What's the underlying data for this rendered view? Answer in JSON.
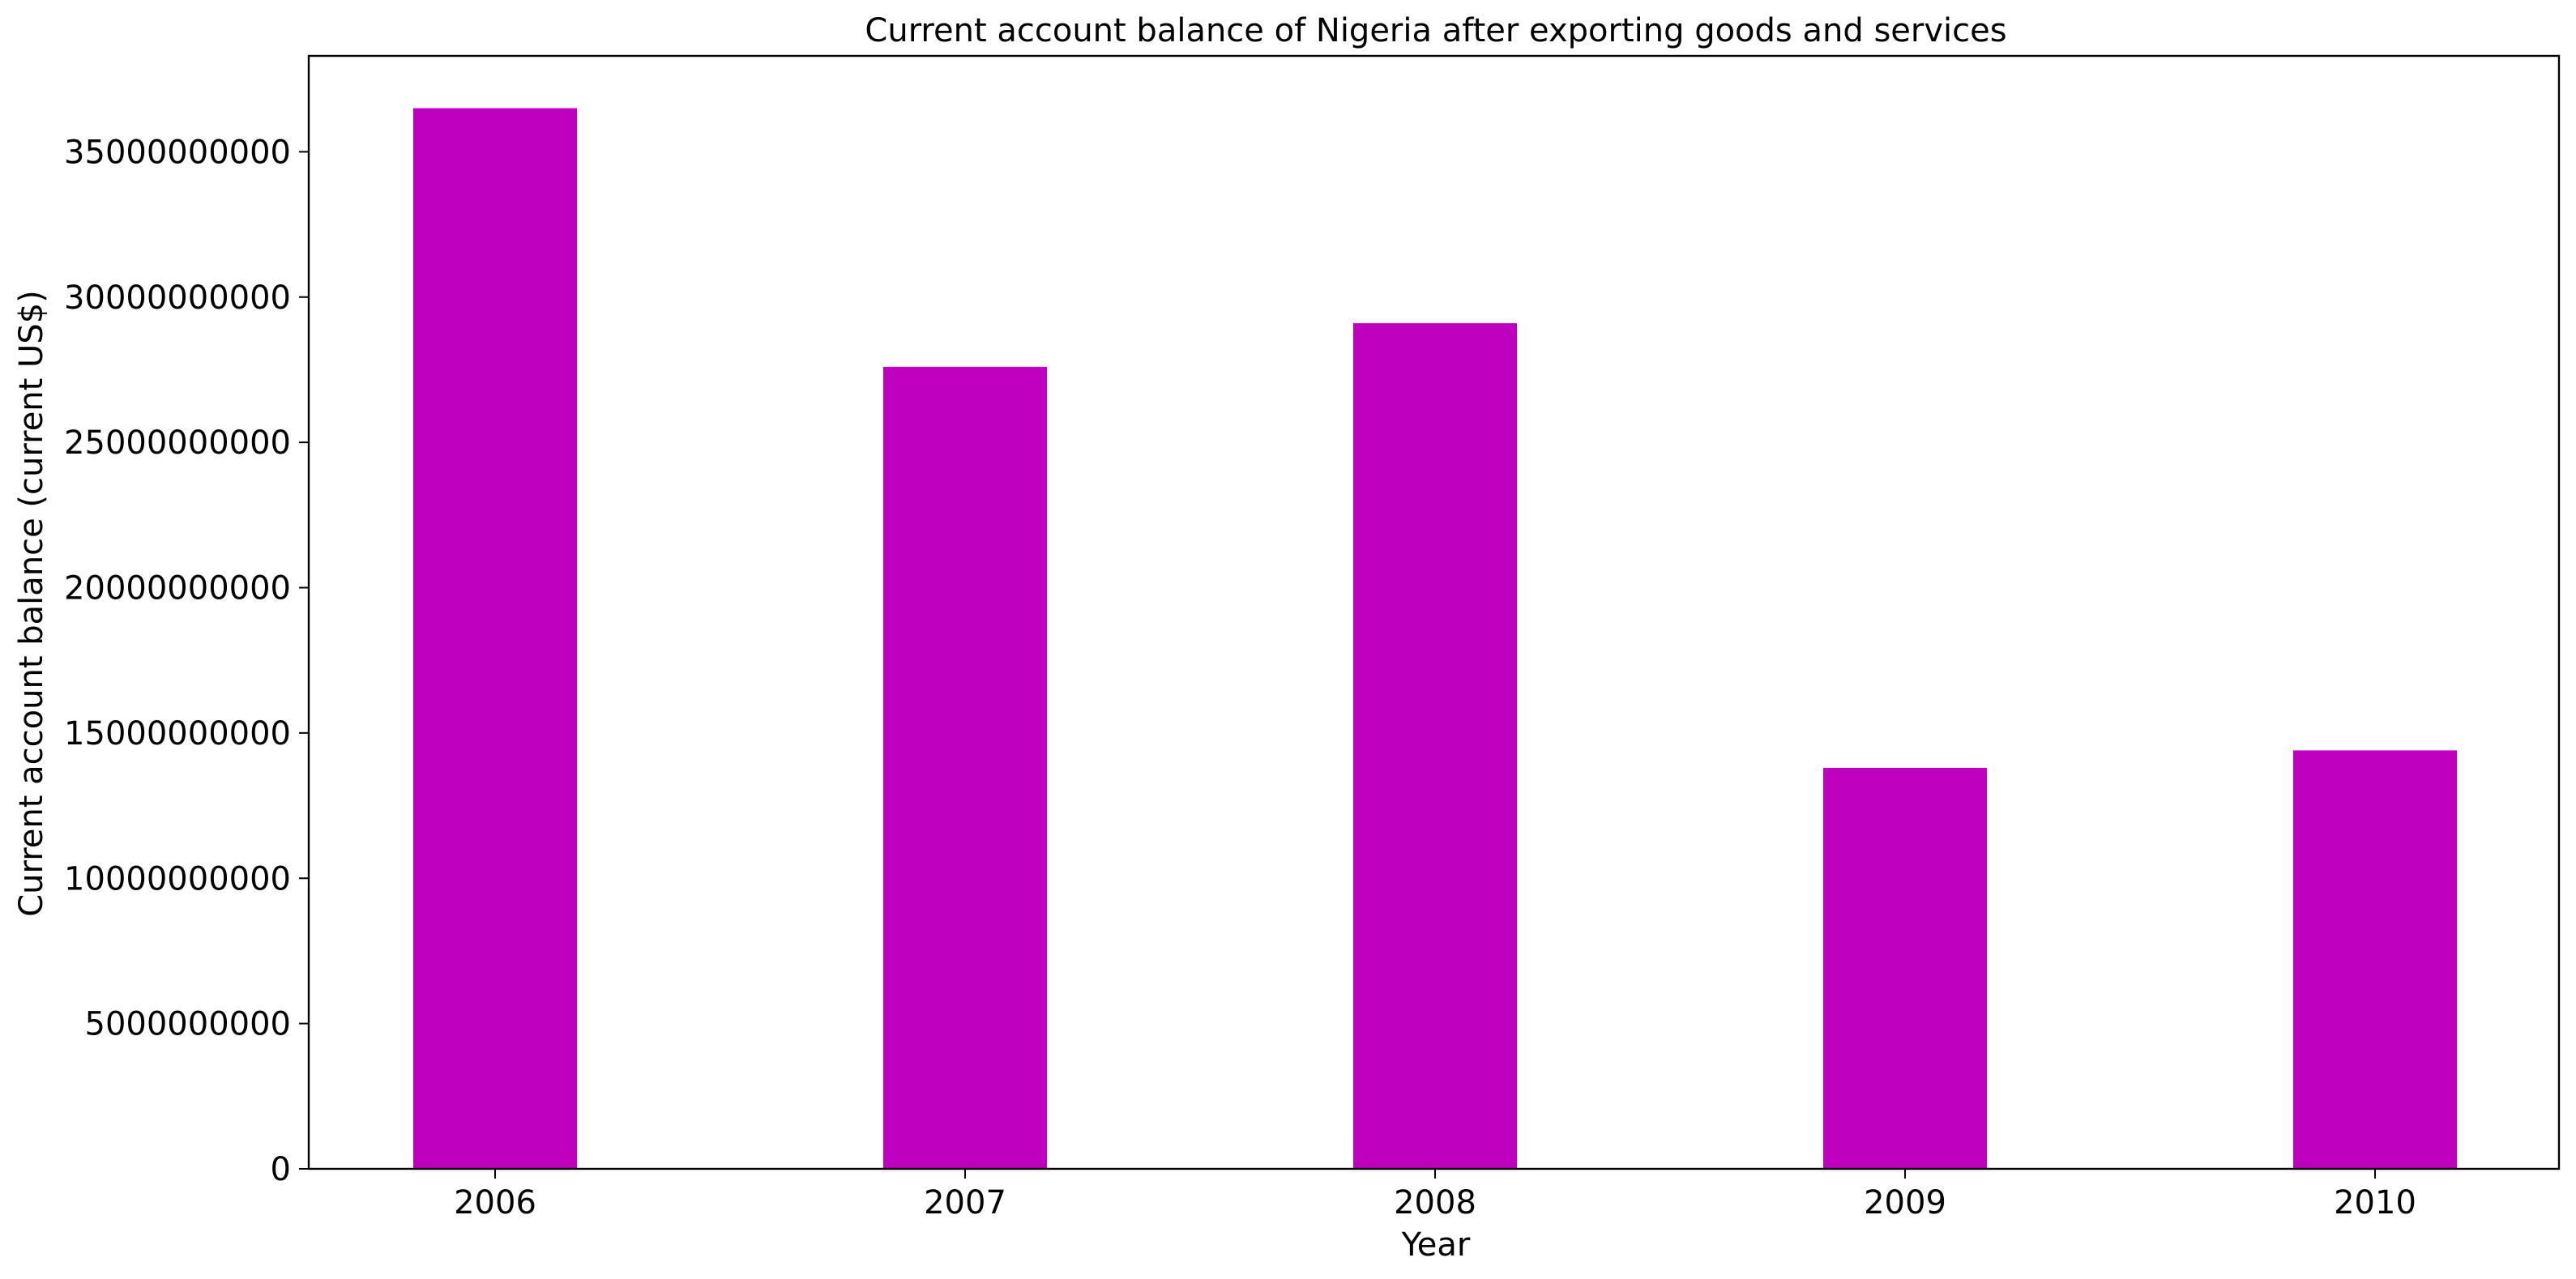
{
  "chart_data": {
    "type": "bar",
    "title": "Current account balance of Nigeria after exporting goods and services",
    "xlabel": "Year",
    "ylabel": "Current account balance (current US$)",
    "categories": [
      "2006",
      "2007",
      "2008",
      "2009",
      "2010"
    ],
    "values": [
      36500000000,
      27600000000,
      29100000000,
      13800000000,
      14400000000
    ],
    "ylim": [
      0,
      38300000000
    ],
    "yticks": [
      0,
      5000000000,
      10000000000,
      15000000000,
      20000000000,
      25000000000,
      30000000000,
      35000000000
    ],
    "ytick_labels": [
      "0",
      "5000000000",
      "10000000000",
      "15000000000",
      "20000000000",
      "25000000000",
      "30000000000",
      "35000000000"
    ],
    "bar_color": "#bf00bf",
    "grid": false,
    "legend": "none"
  }
}
